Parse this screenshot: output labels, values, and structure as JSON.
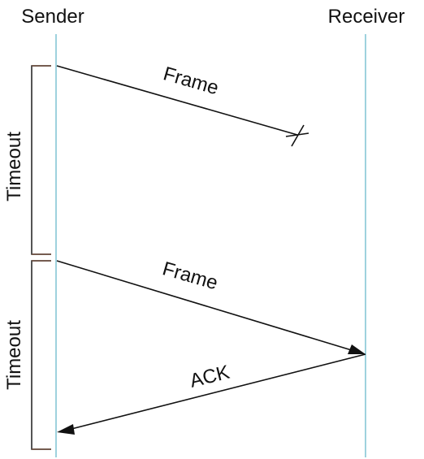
{
  "participants": {
    "sender": "Sender",
    "receiver": "Receiver"
  },
  "timeouts": [
    {
      "label": "Timeout"
    },
    {
      "label": "Timeout"
    }
  ],
  "messages": [
    {
      "label": "Frame",
      "from": "sender",
      "to": "receiver",
      "lost": true
    },
    {
      "label": "Frame",
      "from": "sender",
      "to": "receiver",
      "lost": false
    },
    {
      "label": "ACK",
      "from": "receiver",
      "to": "sender",
      "lost": false
    }
  ],
  "colors": {
    "lifeline": "#7fc4d4",
    "text": "#111111",
    "bracket": "#2b2b2b"
  }
}
